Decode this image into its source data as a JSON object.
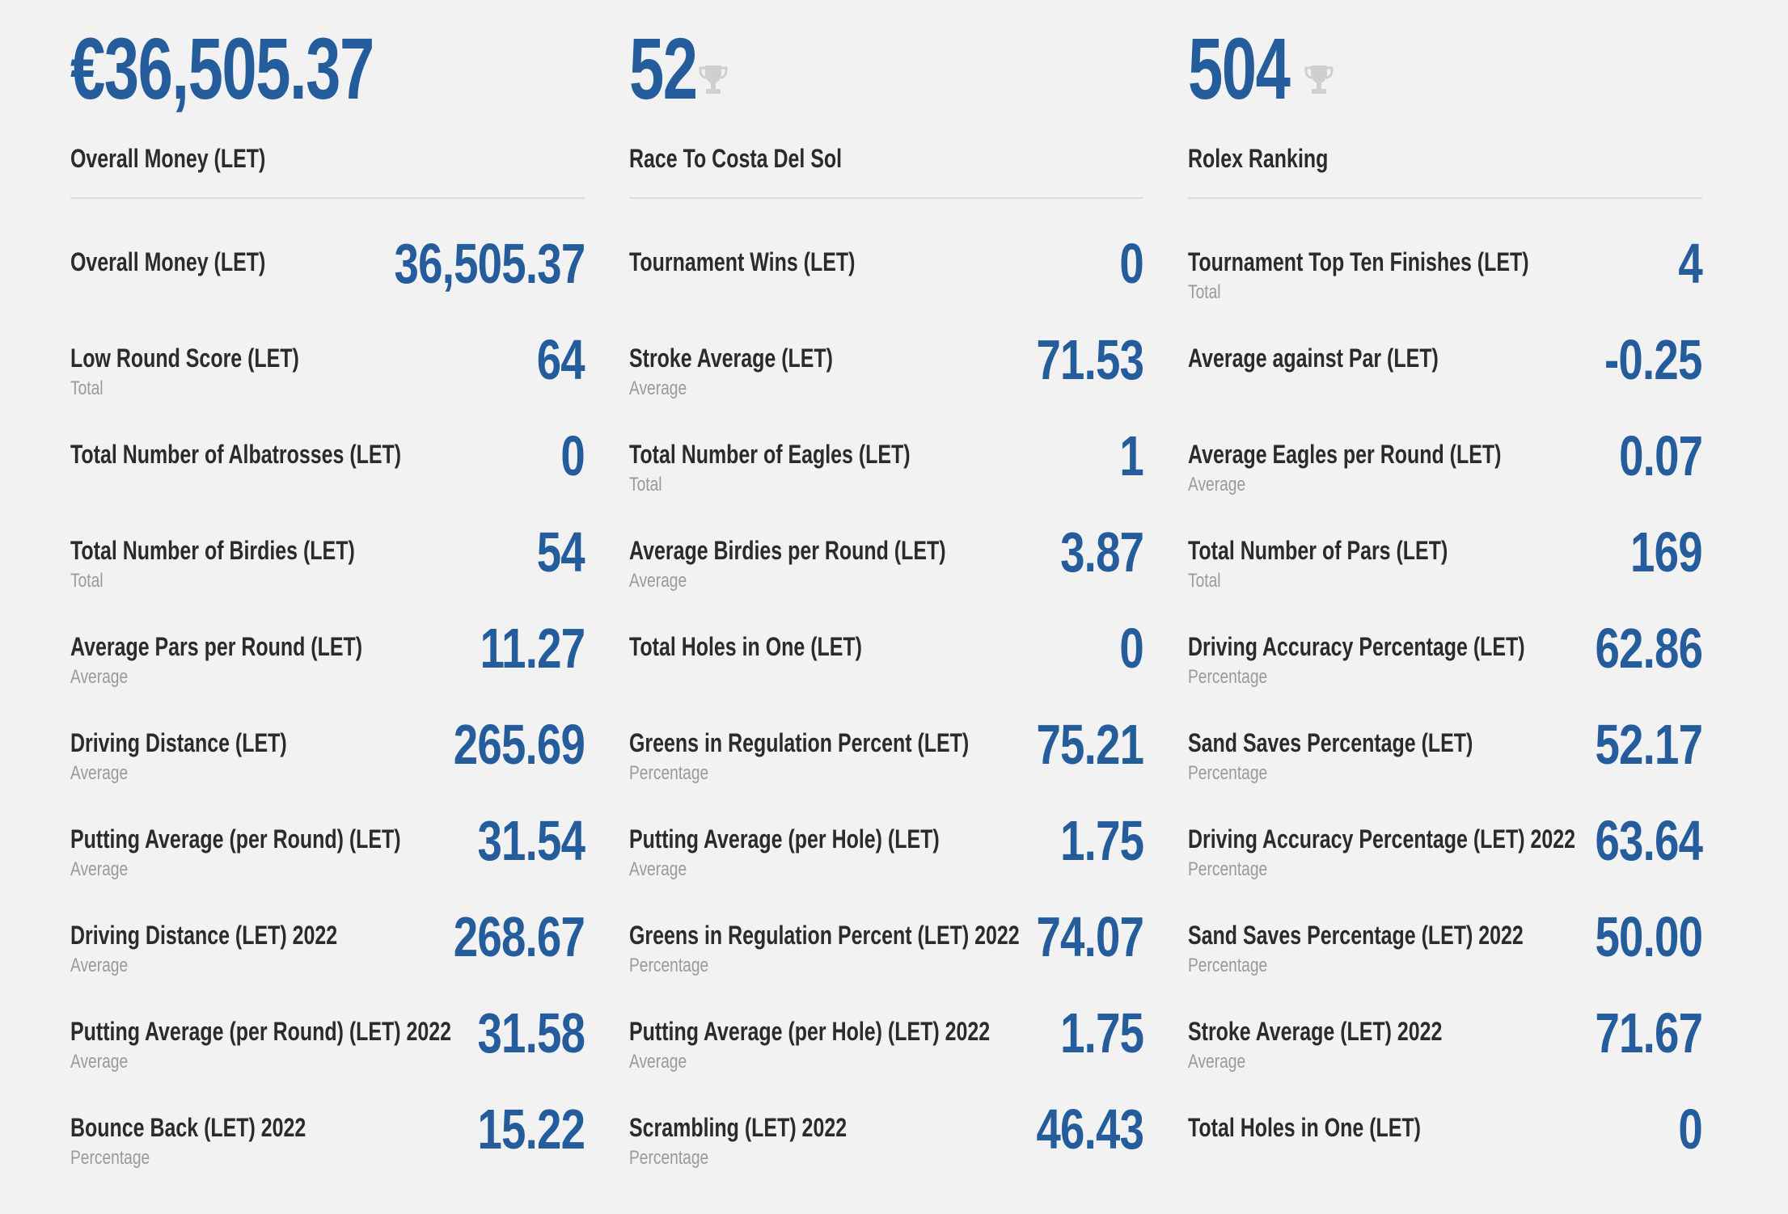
{
  "colors": {
    "accent": "#245c9c",
    "text": "#2b2b2b",
    "muted": "#9a9a9a",
    "background": "#f2f2f2"
  },
  "columns": [
    {
      "hero_value": "€36,505.37",
      "hero_label": "Overall Money (LET)",
      "hero_icon": "",
      "stats": [
        {
          "name": "Overall Money (LET)",
          "sub": "",
          "value": "36,505.37"
        },
        {
          "name": "Low Round Score (LET)",
          "sub": "Total",
          "value": "64"
        },
        {
          "name": "Total Number of Albatrosses (LET)",
          "sub": "",
          "value": "0"
        },
        {
          "name": "Total Number of Birdies (LET)",
          "sub": "Total",
          "value": "54"
        },
        {
          "name": "Average Pars per Round (LET)",
          "sub": "Average",
          "value": "11.27"
        },
        {
          "name": "Driving Distance (LET)",
          "sub": "Average",
          "value": "265.69"
        },
        {
          "name": "Putting Average (per Round) (LET)",
          "sub": "Average",
          "value": "31.54"
        },
        {
          "name": "Driving Distance (LET) 2022",
          "sub": "Average",
          "value": "268.67"
        },
        {
          "name": "Putting Average (per Round) (LET) 2022",
          "sub": "Average",
          "value": "31.58"
        },
        {
          "name": "Bounce Back (LET) 2022",
          "sub": "Percentage",
          "value": "15.22"
        }
      ]
    },
    {
      "hero_value": "52",
      "hero_label": "Race To Costa Del Sol",
      "hero_icon": "trophy-icon",
      "stats": [
        {
          "name": "Tournament Wins (LET)",
          "sub": "",
          "value": "0"
        },
        {
          "name": "Stroke Average (LET)",
          "sub": "Average",
          "value": "71.53"
        },
        {
          "name": "Total Number of Eagles (LET)",
          "sub": "Total",
          "value": "1"
        },
        {
          "name": "Average Birdies per Round (LET)",
          "sub": "Average",
          "value": "3.87"
        },
        {
          "name": "Total Holes in One (LET)",
          "sub": "",
          "value": "0"
        },
        {
          "name": "Greens in Regulation Percent (LET)",
          "sub": "Percentage",
          "value": "75.21"
        },
        {
          "name": "Putting Average (per Hole) (LET)",
          "sub": "Average",
          "value": "1.75"
        },
        {
          "name": "Greens in Regulation Percent (LET) 2022",
          "sub": "Percentage",
          "value": "74.07"
        },
        {
          "name": "Putting Average (per Hole) (LET) 2022",
          "sub": "Average",
          "value": "1.75"
        },
        {
          "name": "Scrambling (LET) 2022",
          "sub": "Percentage",
          "value": "46.43"
        }
      ]
    },
    {
      "hero_value": "504",
      "hero_label": "Rolex Ranking",
      "hero_icon": "trophy-icon",
      "stats": [
        {
          "name": "Tournament Top Ten Finishes (LET)",
          "sub": "Total",
          "value": "4"
        },
        {
          "name": "Average against Par (LET)",
          "sub": "",
          "value": "-0.25"
        },
        {
          "name": "Average Eagles per Round (LET)",
          "sub": "Average",
          "value": "0.07"
        },
        {
          "name": "Total Number of Pars (LET)",
          "sub": "Total",
          "value": "169"
        },
        {
          "name": "Driving Accuracy Percentage (LET)",
          "sub": "Percentage",
          "value": "62.86"
        },
        {
          "name": "Sand Saves Percentage (LET)",
          "sub": "Percentage",
          "value": "52.17"
        },
        {
          "name": "Driving Accuracy Percentage (LET) 2022",
          "sub": "Percentage",
          "value": "63.64"
        },
        {
          "name": "Sand Saves Percentage (LET) 2022",
          "sub": "Percentage",
          "value": "50.00"
        },
        {
          "name": "Stroke Average (LET) 2022",
          "sub": "Average",
          "value": "71.67"
        },
        {
          "name": "Total Holes in One (LET)",
          "sub": "",
          "value": "0"
        }
      ]
    }
  ]
}
